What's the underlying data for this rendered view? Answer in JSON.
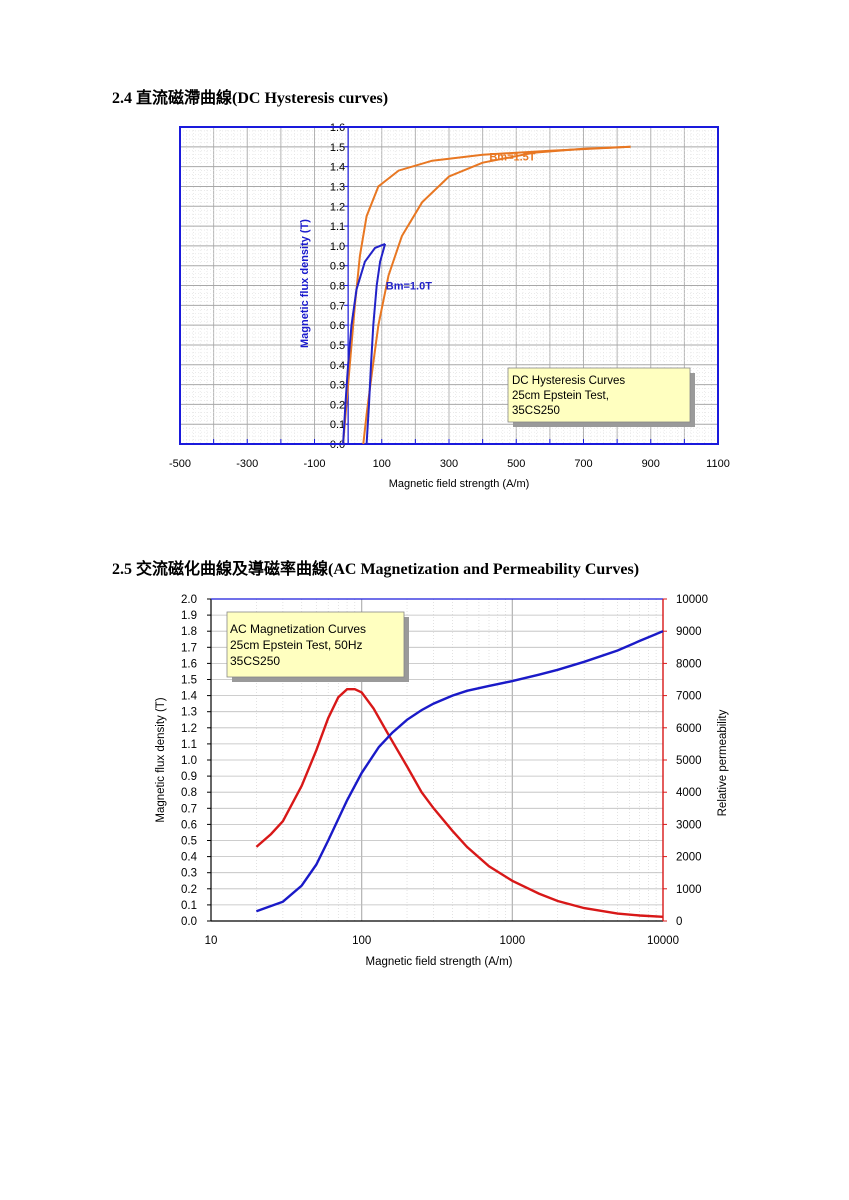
{
  "sections": [
    {
      "number": "2.4",
      "heading": "2.4  直流磁滯曲線(DC Hysteresis curves)"
    },
    {
      "number": "2.5",
      "heading": "2.5  交流磁化曲線及導磁率曲線(AC Magnetization and Permeability Curves)"
    }
  ],
  "colors": {
    "frame_blue": "#1a1adc",
    "bm15_orange": "#e87722",
    "bm10_blue": "#2222c8",
    "ylabel_blue": "#1a1acc",
    "perm_red": "#d81818",
    "mag_blue": "#1a1ac8",
    "note_bg": "#ffffc0",
    "grid": "#c8c8c8"
  },
  "chart_data": [
    {
      "type": "line",
      "title": "",
      "xlabel": "Magnetic field strength (A/m)",
      "ylabel": "Magnetic flux density (T)",
      "xlim": [
        -500,
        1100
      ],
      "ylim": [
        0,
        1.6
      ],
      "x_ticks": [
        "-500",
        "-300",
        "-100",
        "100",
        "300",
        "500",
        "700",
        "900",
        "1100"
      ],
      "y_ticks": [
        "0.0",
        "0.1",
        "0.2",
        "0.3",
        "0.4",
        "0.5",
        "0.6",
        "0.7",
        "0.8",
        "0.9",
        "1.0",
        "1.1",
        "1.2",
        "1.3",
        "1.4",
        "1.5",
        "1.6"
      ],
      "grid": true,
      "note": [
        "DC Hysteresis Curves",
        "25cm Epstein Test,",
        "35CS250"
      ],
      "series": [
        {
          "name": "Bm=1.5T",
          "color": "#e87722",
          "upper": [
            [
              -15,
              0.0
            ],
            [
              -5,
              0.2
            ],
            [
              5,
              0.4
            ],
            [
              20,
              0.7
            ],
            [
              35,
              0.95
            ],
            [
              55,
              1.15
            ],
            [
              90,
              1.3
            ],
            [
              150,
              1.38
            ],
            [
              250,
              1.43
            ],
            [
              400,
              1.46
            ],
            [
              600,
              1.48
            ],
            [
              840,
              1.5
            ]
          ],
          "lower": [
            [
              840,
              1.5
            ],
            [
              700,
              1.49
            ],
            [
              550,
              1.47
            ],
            [
              400,
              1.42
            ],
            [
              300,
              1.35
            ],
            [
              220,
              1.22
            ],
            [
              160,
              1.05
            ],
            [
              120,
              0.85
            ],
            [
              90,
              0.6
            ],
            [
              70,
              0.35
            ],
            [
              55,
              0.15
            ],
            [
              45,
              0.0
            ]
          ]
        },
        {
          "name": "Bm=1.0T",
          "color": "#2222c8",
          "upper": [
            [
              -15,
              0.0
            ],
            [
              -8,
              0.2
            ],
            [
              0,
              0.4
            ],
            [
              10,
              0.6
            ],
            [
              25,
              0.78
            ],
            [
              50,
              0.92
            ],
            [
              80,
              0.99
            ],
            [
              110,
              1.01
            ]
          ],
          "lower": [
            [
              110,
              1.01
            ],
            [
              95,
              0.92
            ],
            [
              85,
              0.8
            ],
            [
              75,
              0.6
            ],
            [
              68,
              0.4
            ],
            [
              62,
              0.2
            ],
            [
              55,
              0.0
            ]
          ]
        }
      ]
    },
    {
      "type": "line",
      "title": "",
      "xlabel": "Magnetic field strength (A/m)",
      "ylabel": "Magnetic flux density (T)",
      "y2label": "Relative permeability",
      "xscale": "log",
      "xlim": [
        10,
        10000
      ],
      "ylim": [
        0,
        2.0
      ],
      "y2lim": [
        0,
        10000
      ],
      "x_ticks": [
        "10",
        "100",
        "1000",
        "10000"
      ],
      "y_ticks": [
        "0.0",
        "0.1",
        "0.2",
        "0.3",
        "0.4",
        "0.5",
        "0.6",
        "0.7",
        "0.8",
        "0.9",
        "1.0",
        "1.1",
        "1.2",
        "1.3",
        "1.4",
        "1.5",
        "1.6",
        "1.7",
        "1.8",
        "1.9",
        "2.0"
      ],
      "y2_ticks": [
        "0",
        "1000",
        "2000",
        "3000",
        "4000",
        "5000",
        "6000",
        "7000",
        "8000",
        "9000",
        "10000"
      ],
      "grid": true,
      "note": [
        "AC Magnetization Curves",
        "25cm Epstein Test, 50Hz",
        "35CS250"
      ],
      "series": [
        {
          "name": "",
          "axis": "left",
          "color": "#1a1ac8",
          "points": [
            [
              20,
              0.06
            ],
            [
              30,
              0.12
            ],
            [
              40,
              0.22
            ],
            [
              50,
              0.35
            ],
            [
              60,
              0.5
            ],
            [
              80,
              0.75
            ],
            [
              100,
              0.92
            ],
            [
              130,
              1.08
            ],
            [
              160,
              1.17
            ],
            [
              200,
              1.25
            ],
            [
              250,
              1.31
            ],
            [
              300,
              1.35
            ],
            [
              400,
              1.4
            ],
            [
              500,
              1.43
            ],
            [
              700,
              1.46
            ],
            [
              1000,
              1.49
            ],
            [
              1500,
              1.53
            ],
            [
              2000,
              1.56
            ],
            [
              3000,
              1.61
            ],
            [
              5000,
              1.68
            ],
            [
              7000,
              1.74
            ],
            [
              10000,
              1.8
            ]
          ]
        },
        {
          "name": "",
          "axis": "right",
          "color": "#d81818",
          "points": [
            [
              20,
              2300
            ],
            [
              25,
              2700
            ],
            [
              30,
              3100
            ],
            [
              40,
              4200
            ],
            [
              50,
              5300
            ],
            [
              60,
              6300
            ],
            [
              70,
              6950
            ],
            [
              80,
              7200
            ],
            [
              90,
              7200
            ],
            [
              100,
              7100
            ],
            [
              120,
              6600
            ],
            [
              150,
              5800
            ],
            [
              200,
              4800
            ],
            [
              250,
              4000
            ],
            [
              300,
              3500
            ],
            [
              400,
              2800
            ],
            [
              500,
              2300
            ],
            [
              700,
              1700
            ],
            [
              1000,
              1250
            ],
            [
              1500,
              850
            ],
            [
              2000,
              620
            ],
            [
              3000,
              400
            ],
            [
              5000,
              230
            ],
            [
              7000,
              170
            ],
            [
              10000,
              130
            ]
          ]
        }
      ]
    }
  ]
}
